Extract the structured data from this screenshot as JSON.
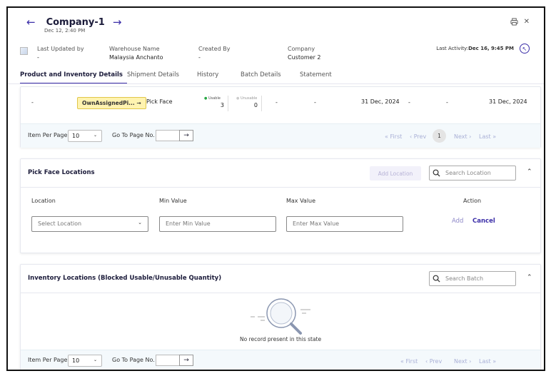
{
  "header": {
    "title": "Company-1",
    "date": "Dec 12, 2:40 PM"
  },
  "meta": {
    "last_updated_label": "Last Updated by",
    "last_updated_value": "-",
    "warehouse_label": "Warehouse Name",
    "warehouse_value": "Malaysia Anchanto",
    "created_label": "Created By",
    "created_value": "-",
    "company_label": "Company",
    "company_value": "Customer 2",
    "last_activity_label": "Last Activity:",
    "last_activity_value": "Dec 16, 9:45 PM"
  },
  "tabs": [
    {
      "label": "Product and Inventory Details"
    },
    {
      "label": "Shipment Details"
    },
    {
      "label": "History"
    },
    {
      "label": "Batch Details"
    },
    {
      "label": "Statement"
    }
  ],
  "row": {
    "c1": "-",
    "tag": "OwnAssignedPi...",
    "type": "Pick Face",
    "usable_label": "Usable",
    "usable_value": "3",
    "unusable_label": "Unusable",
    "unusable_value": "0",
    "c5": "-",
    "c6": "-",
    "date1": "31 Dec, 2024",
    "c8": "-",
    "c9": "-",
    "date2": "31 Dec, 2024"
  },
  "pager1": {
    "per_page_label": "Item Per Page",
    "per_page_value": "10",
    "goto_label": "Go To Page No.",
    "first": "First",
    "prev": "Prev",
    "page": "1",
    "next": "Next",
    "last": "Last"
  },
  "pick_face": {
    "title": "Pick Face Locations",
    "add_location": "Add Location",
    "search_placeholder": "Search Location",
    "col_location": "Location",
    "col_min": "Min Value",
    "col_max": "Max Value",
    "col_action": "Action",
    "select_placeholder": "Select Location",
    "min_placeholder": "Enter Min Value",
    "max_placeholder": "Enter Max Value",
    "add": "Add",
    "cancel": "Cancel"
  },
  "inventory": {
    "title": "Inventory Locations (Blocked Usable/Unusable Quantity)",
    "search_placeholder": "Search Batch",
    "empty": "No record present in this state"
  },
  "pager2": {
    "per_page_label": "Item Per Page",
    "per_page_value": "10",
    "goto_label": "Go To Page No.",
    "first": "First",
    "prev": "Prev",
    "next": "Next",
    "last": "Last"
  }
}
